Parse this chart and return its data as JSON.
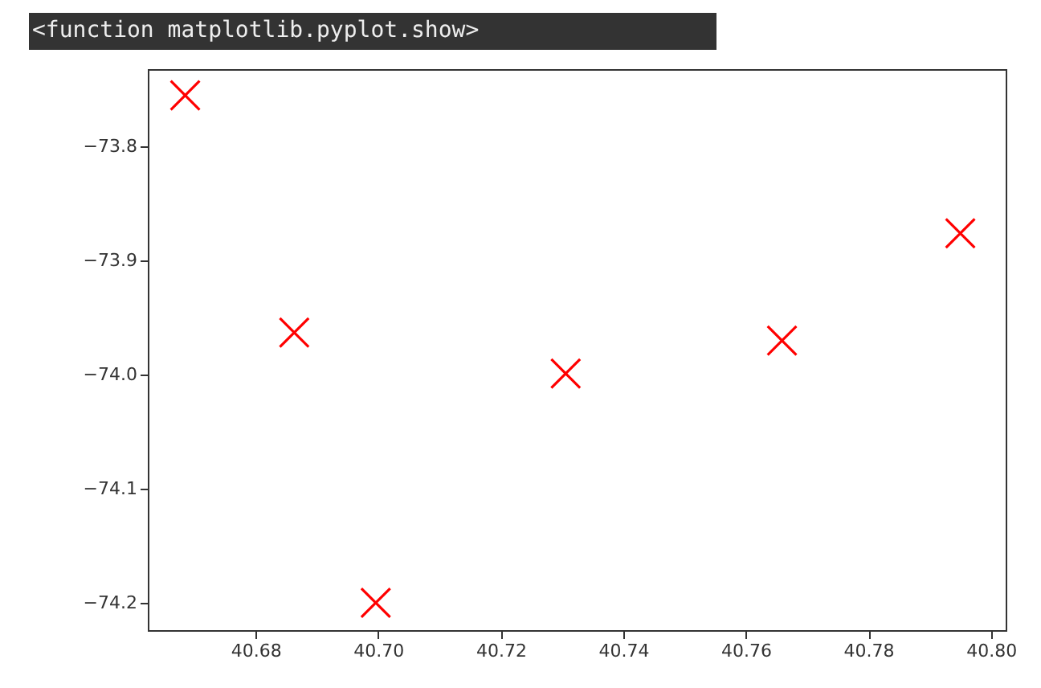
{
  "chart_data": {
    "type": "scatter",
    "title": "<function matplotlib.pyplot.show>",
    "x": [
      40.6685,
      40.6863,
      40.6996,
      40.7306,
      40.7659,
      40.795
    ],
    "series": [
      {
        "color": "#ff0000",
        "values": [
          -73.755,
          -73.963,
          -74.2,
          -73.999,
          -73.97,
          -73.876
        ]
      }
    ],
    "marker": "cross",
    "xlim": [
      40.6624,
      40.8024
    ],
    "xticks": [
      40.68,
      {
        "value": 40.7,
        "label": "40.70"
      },
      40.72,
      40.74,
      40.76,
      40.78,
      {
        "value": 40.8,
        "label": "40.80"
      }
    ],
    "ylim": [
      -74.224,
      -73.732
    ],
    "yticks": [
      -74.2,
      -74.1,
      {
        "value": -74.0,
        "label": "−74.0"
      },
      -73.9,
      -73.8
    ],
    "grid": false
  }
}
